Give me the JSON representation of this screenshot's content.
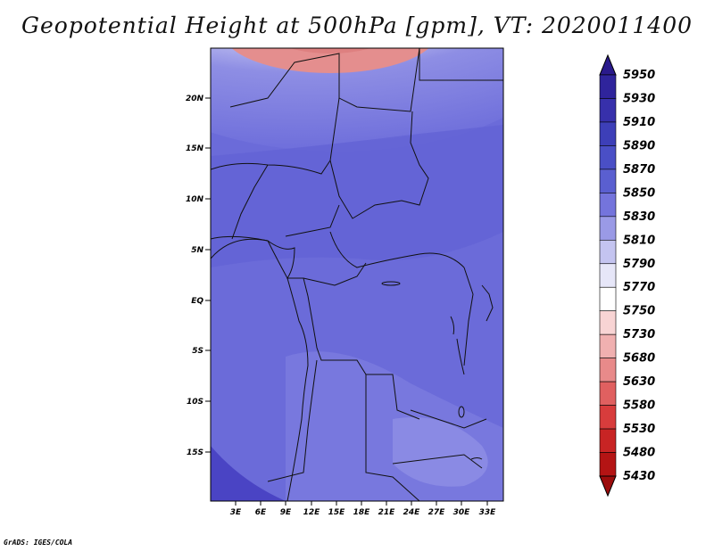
{
  "title": "Geopotential Height at 500hPa [gpm], VT: 2020011400",
  "footer": "GrADS: IGES/COLA",
  "map": {
    "lat_ticks": [
      "20N",
      "15N",
      "10N",
      "5N",
      "EQ",
      "5S",
      "10S",
      "15S"
    ],
    "lon_ticks": [
      "3E",
      "6E",
      "9E",
      "12E",
      "15E",
      "18E",
      "21E",
      "24E",
      "27E",
      "30E",
      "33E"
    ]
  },
  "colorbar": {
    "labels": [
      "5950",
      "5930",
      "5910",
      "5890",
      "5870",
      "5850",
      "5830",
      "5810",
      "5790",
      "5770",
      "5750",
      "5730",
      "5680",
      "5630",
      "5580",
      "5530",
      "5480",
      "5430"
    ],
    "colors": [
      "#2a1a8c",
      "#2f249c",
      "#3730ab",
      "#3d3fb8",
      "#4a4fc6",
      "#5a5fd0",
      "#7474dc",
      "#9a9ae6",
      "#c4c4f0",
      "#e6e6f8",
      "#ffffff",
      "#f8d4d4",
      "#f0b0b0",
      "#e88a8a",
      "#e06060",
      "#d83c3c",
      "#c82424",
      "#b41414",
      "#9c0c0c"
    ]
  }
}
